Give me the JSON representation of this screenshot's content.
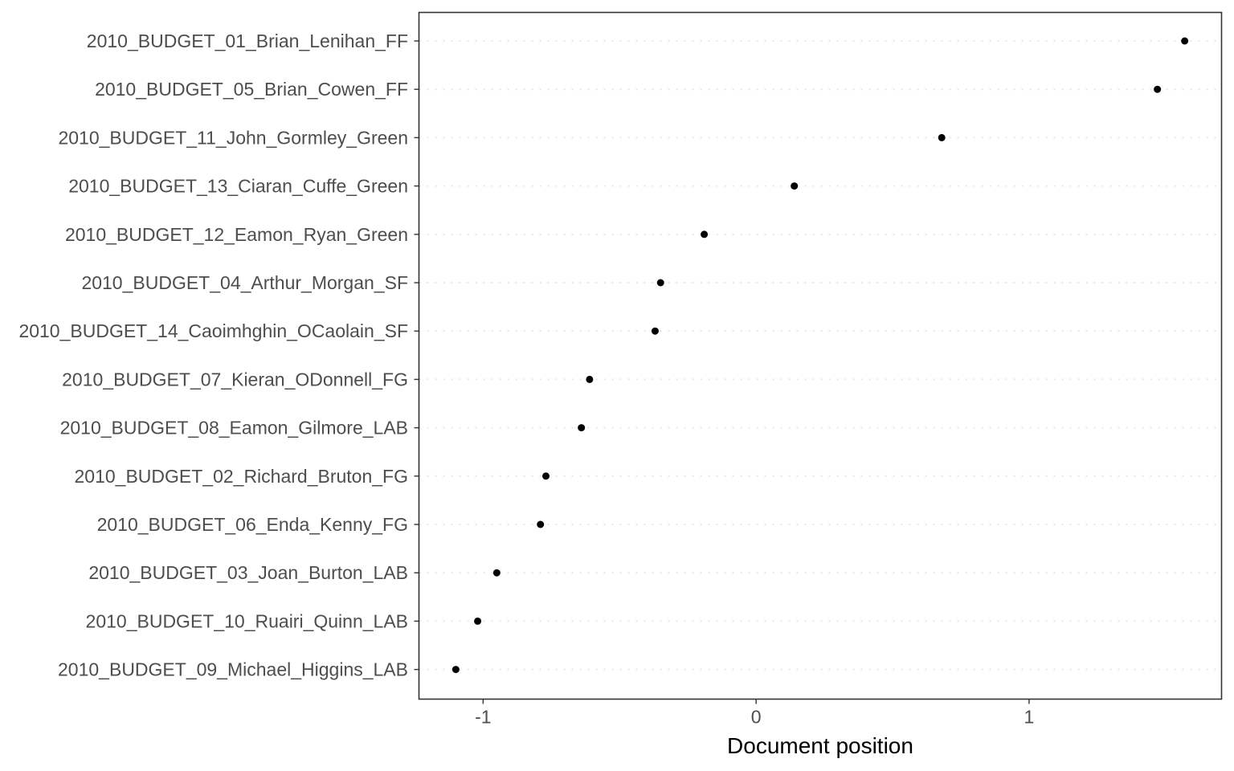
{
  "chart_data": {
    "type": "scatter",
    "xlabel": "Document position",
    "ylabel": "",
    "xlim": [
      -1.235,
      1.705
    ],
    "x_ticks": [
      -1,
      0,
      1
    ],
    "x_tick_labels": [
      "-1",
      "0",
      "1"
    ],
    "grid": "horizontal dotted",
    "legend": "none",
    "categories": [
      "2010_BUDGET_01_Brian_Lenihan_FF",
      "2010_BUDGET_05_Brian_Cowen_FF",
      "2010_BUDGET_11_John_Gormley_Green",
      "2010_BUDGET_13_Ciaran_Cuffe_Green",
      "2010_BUDGET_12_Eamon_Ryan_Green",
      "2010_BUDGET_04_Arthur_Morgan_SF",
      "2010_BUDGET_14_Caoimhghin_OCaolain_SF",
      "2010_BUDGET_07_Kieran_ODonnell_FG",
      "2010_BUDGET_08_Eamon_Gilmore_LAB",
      "2010_BUDGET_02_Richard_Bruton_FG",
      "2010_BUDGET_06_Enda_Kenny_FG",
      "2010_BUDGET_03_Joan_Burton_LAB",
      "2010_BUDGET_10_Ruairi_Quinn_LAB",
      "2010_BUDGET_09_Michael_Higgins_LAB"
    ],
    "values": [
      1.57,
      1.47,
      0.68,
      0.14,
      -0.19,
      -0.35,
      -0.37,
      -0.61,
      -0.64,
      -0.77,
      -0.79,
      -0.95,
      -1.02,
      -1.1
    ],
    "point_color": "#000000",
    "gridline_color": "#e5e5e5"
  }
}
